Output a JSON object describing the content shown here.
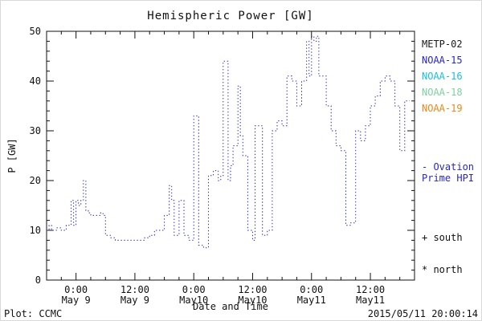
{
  "chart_data": {
    "type": "line",
    "title": "Hemispheric Power [GW]",
    "xlabel": "Date and Time",
    "ylabel": "P [GW]",
    "line_style": "dotted-step",
    "grid": false,
    "xlim": [
      -6,
      69
    ],
    "ylim": [
      0,
      50
    ],
    "y_ticks": [
      0,
      10,
      20,
      30,
      40,
      50
    ],
    "y_minor_step": 2,
    "x_minor_step": 3,
    "x_major_step": 12,
    "x_unit": "hours from 2015-05-09 00:00 UT",
    "x_ticks": [
      {
        "hour": 0,
        "time": "0:00",
        "date": "May 9"
      },
      {
        "hour": 12,
        "time": "12:00",
        "date": "May 9"
      },
      {
        "hour": 24,
        "time": "0:00",
        "date": "May10"
      },
      {
        "hour": 36,
        "time": "12:00",
        "date": "May10"
      },
      {
        "hour": 48,
        "time": "0:00",
        "date": "May11"
      },
      {
        "hour": 60,
        "time": "12:00",
        "date": "May11"
      }
    ],
    "series": [
      {
        "name": "Ovation Prime HPI",
        "color": "#2727c8",
        "points": [
          [
            -6,
            10
          ],
          [
            -5.5,
            11
          ],
          [
            -5,
            10
          ],
          [
            -4,
            10.5
          ],
          [
            -3,
            10
          ],
          [
            -2,
            11
          ],
          [
            -1,
            16
          ],
          [
            -0.5,
            11
          ],
          [
            0,
            16
          ],
          [
            0.5,
            15
          ],
          [
            1,
            16
          ],
          [
            1.5,
            20
          ],
          [
            2,
            14
          ],
          [
            2.5,
            13.5
          ],
          [
            3,
            13
          ],
          [
            4,
            13
          ],
          [
            5,
            13.5
          ],
          [
            5.5,
            13
          ],
          [
            6,
            9
          ],
          [
            7,
            8.5
          ],
          [
            8,
            8
          ],
          [
            10,
            8
          ],
          [
            12,
            8
          ],
          [
            13,
            8
          ],
          [
            14,
            8.5
          ],
          [
            15,
            9
          ],
          [
            16,
            10
          ],
          [
            17,
            10
          ],
          [
            18,
            13
          ],
          [
            19,
            19
          ],
          [
            19.5,
            16
          ],
          [
            20,
            9
          ],
          [
            21,
            16
          ],
          [
            22,
            9
          ],
          [
            23,
            8
          ],
          [
            24,
            33
          ],
          [
            24.8,
            33
          ],
          [
            25,
            7
          ],
          [
            26,
            6.5
          ],
          [
            27,
            21
          ],
          [
            28,
            22
          ],
          [
            29,
            20
          ],
          [
            29.5,
            21
          ],
          [
            30,
            44
          ],
          [
            30.6,
            44
          ],
          [
            31,
            20
          ],
          [
            31.5,
            23
          ],
          [
            32,
            27
          ],
          [
            33,
            39
          ],
          [
            33.5,
            29
          ],
          [
            34,
            25
          ],
          [
            35,
            10
          ],
          [
            36,
            8
          ],
          [
            36.5,
            31
          ],
          [
            37.2,
            31
          ],
          [
            38,
            9
          ],
          [
            39,
            10
          ],
          [
            40,
            30
          ],
          [
            41,
            32
          ],
          [
            42,
            31
          ],
          [
            43,
            41
          ],
          [
            44,
            40
          ],
          [
            45,
            35
          ],
          [
            46,
            40
          ],
          [
            47,
            48
          ],
          [
            47.5,
            41
          ],
          [
            48,
            49
          ],
          [
            48.5,
            48
          ],
          [
            49,
            49
          ],
          [
            49.5,
            41
          ],
          [
            50,
            41
          ],
          [
            51,
            35
          ],
          [
            52,
            30
          ],
          [
            53,
            27
          ],
          [
            54,
            26
          ],
          [
            55,
            11
          ],
          [
            56,
            11.5
          ],
          [
            57,
            30
          ],
          [
            58,
            28
          ],
          [
            59,
            31
          ],
          [
            60,
            35
          ],
          [
            61,
            37
          ],
          [
            62,
            40
          ],
          [
            63,
            41
          ],
          [
            64,
            40
          ],
          [
            65,
            35
          ],
          [
            66,
            26
          ],
          [
            67,
            36
          ],
          [
            68,
            36
          ]
        ]
      }
    ]
  },
  "legend": {
    "satellites": [
      {
        "label": "METP-02",
        "color": "#1a1a1a"
      },
      {
        "label": "NOAA-15",
        "color": "#2727c8"
      },
      {
        "label": "NOAA-16",
        "color": "#18c0e0"
      },
      {
        "label": "NOAA-18",
        "color": "#7fd09f"
      },
      {
        "label": "NOAA-19",
        "color": "#e8891a"
      }
    ],
    "model_label_line1": "- Ovation",
    "model_label_line2": "Prime HPI",
    "model_color": "#2727c8",
    "south_marker": "+ south",
    "north_marker": "* north"
  },
  "footer": {
    "left": "Plot: CCMC",
    "right": "2015/05/11 20:00:14"
  }
}
